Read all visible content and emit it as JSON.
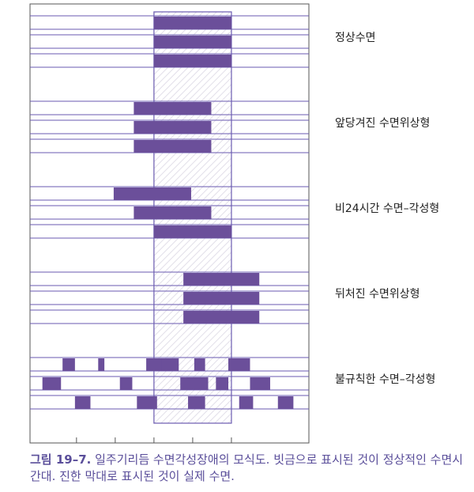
{
  "colors": {
    "bar": "#6b4f9a",
    "line": "#6a5ab0",
    "axis": "#555555",
    "normal_fill": "#eeecf4",
    "caption": "#5a4e9a"
  },
  "diagram": {
    "normal_sleep_window": [
      8.0,
      13.0
    ],
    "ticks": [
      3,
      5.5,
      8,
      10.5,
      13
    ],
    "groups": [
      {
        "label": "정상수면",
        "rows": [
          [
            [
              8.0,
              13.0
            ]
          ],
          [
            [
              8.0,
              13.0
            ]
          ],
          [
            [
              8.0,
              13.0
            ]
          ]
        ]
      },
      {
        "label": "앞당겨진 수면위상형",
        "rows": [
          [
            [
              6.7,
              11.7
            ]
          ],
          [
            [
              6.7,
              11.7
            ]
          ],
          [
            [
              6.7,
              11.7
            ]
          ]
        ]
      },
      {
        "label": "비24시간 수면–각성형",
        "rows": [
          [
            [
              5.4,
              10.4
            ]
          ],
          [
            [
              6.7,
              11.7
            ]
          ],
          [
            [
              8.0,
              13.0
            ]
          ]
        ]
      },
      {
        "label": "뒤처진 수면위상형",
        "rows": [
          [
            [
              9.9,
              14.8
            ]
          ],
          [
            [
              9.9,
              14.8
            ]
          ],
          [
            [
              9.9,
              14.8
            ]
          ]
        ]
      },
      {
        "label": "불규칙한 수면–각성형",
        "rows": [
          [
            [
              2.1,
              2.9
            ],
            [
              4.4,
              4.8
            ],
            [
              7.5,
              9.6
            ],
            [
              8.5,
              9.1
            ],
            [
              10.6,
              11.3
            ],
            [
              12.8,
              14.2
            ]
          ],
          [
            [
              0.8,
              2.0
            ],
            [
              5.8,
              6.6
            ],
            [
              9.7,
              11.5
            ],
            [
              12.0,
              12.8
            ],
            [
              14.2,
              15.5
            ]
          ],
          [
            [
              2.9,
              3.9
            ],
            [
              6.9,
              8.2
            ],
            [
              10.2,
              11.3
            ],
            [
              13.5,
              14.4
            ],
            [
              16.0,
              17.0
            ]
          ]
        ]
      }
    ]
  },
  "caption": {
    "label": "그림 19–7.",
    "text": "일주기리듬 수면각성장애의 모식도. 빗금으로 표시된 것이 정상적인 수면시간대. 진한 막대로 표시된 것이 실제 수면."
  }
}
